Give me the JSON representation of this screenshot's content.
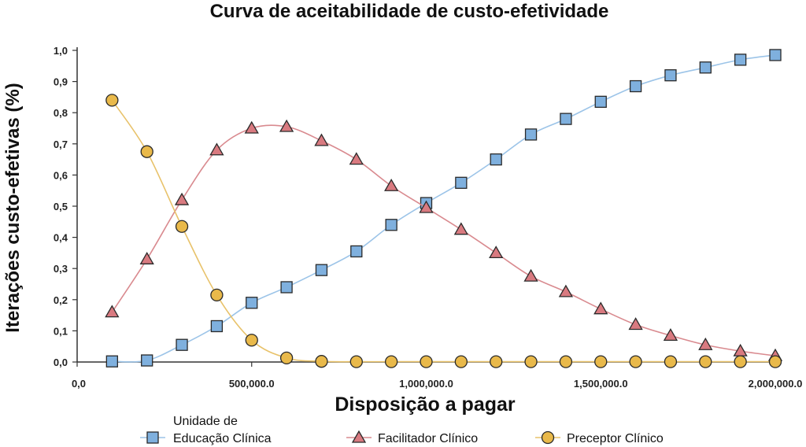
{
  "colors": {
    "educacao": "#7fb0de",
    "educacao_line": "#9cc4e8",
    "facilitador": "#d97a80",
    "facilitador_line": "#d98a8f",
    "preceptor": "#e9b94a",
    "preceptor_line": "#e8c26a",
    "axis": "#333333"
  },
  "chart_data": {
    "type": "line",
    "title": "Curva de aceitabilidade de custo-efetividade",
    "xlabel": "Disposição a pagar",
    "ylabel": "Iterações custo-efetivas (%)",
    "xlim": [
      0,
      2000000
    ],
    "ylim": [
      0,
      1.0
    ],
    "x_ticks": [
      0,
      500000,
      1000000,
      1500000,
      2000000
    ],
    "x_tick_labels": [
      "0,0",
      "500,000.0",
      "1,000,000.0",
      "1,500,000.0",
      "2,000,000.0"
    ],
    "y_ticks": [
      0,
      0.1,
      0.2,
      0.3,
      0.4,
      0.5,
      0.6,
      0.7,
      0.8,
      0.9,
      1.0
    ],
    "y_tick_labels": [
      "0,0",
      "0,1",
      "0,2",
      "0,3",
      "0,4",
      "0,5",
      "0,6",
      "0,7",
      "0,8",
      "0,9",
      "1,0"
    ],
    "grid": false,
    "legend_placement": "bottom",
    "legend_header": "Unidade de",
    "x": [
      100000,
      200000,
      300000,
      400000,
      500000,
      600000,
      700000,
      800000,
      900000,
      1000000,
      1100000,
      1200000,
      1300000,
      1400000,
      1500000,
      1600000,
      1700000,
      1800000,
      1900000,
      2000000
    ],
    "series": [
      {
        "name": "Educação Clínica",
        "marker": "square",
        "values": [
          0.002,
          0.005,
          0.055,
          0.115,
          0.19,
          0.24,
          0.295,
          0.355,
          0.44,
          0.51,
          0.575,
          0.65,
          0.73,
          0.78,
          0.835,
          0.885,
          0.92,
          0.945,
          0.97,
          0.985
        ]
      },
      {
        "name": "Facilitador Clínico",
        "marker": "triangle",
        "values": [
          0.16,
          0.33,
          0.52,
          0.68,
          0.75,
          0.755,
          0.71,
          0.65,
          0.565,
          0.495,
          0.425,
          0.35,
          0.275,
          0.225,
          0.17,
          0.12,
          0.085,
          0.055,
          0.035,
          0.02
        ]
      },
      {
        "name": "Preceptor Clínico",
        "marker": "circle",
        "values": [
          0.84,
          0.675,
          0.435,
          0.215,
          0.07,
          0.013,
          0.002,
          0.001,
          0.001,
          0.001,
          0.001,
          0.001,
          0.001,
          0.001,
          0.001,
          0.001,
          0.001,
          0.001,
          0.001,
          0.001
        ]
      }
    ]
  }
}
